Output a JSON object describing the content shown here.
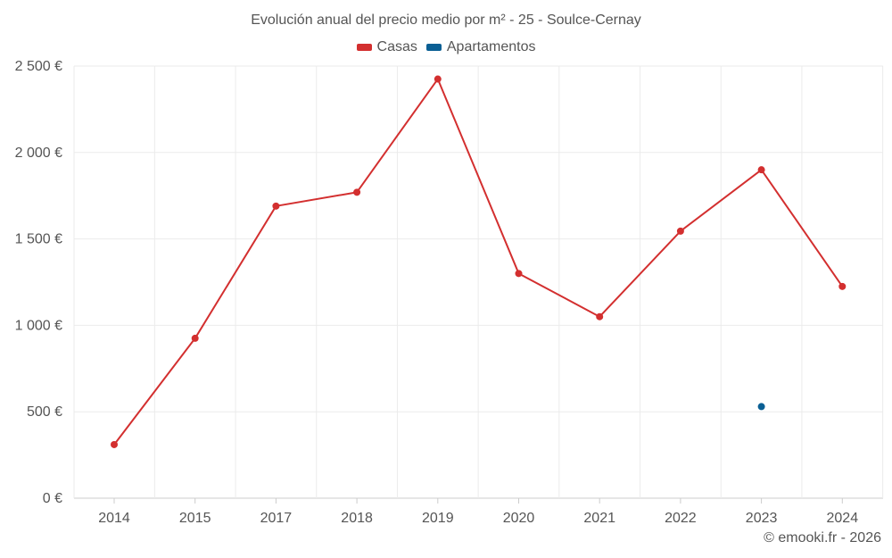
{
  "chart_data": {
    "type": "line",
    "title": "Evolución anual del precio medio por m² - 25 - Soulce-Cernay",
    "categories": [
      "2014",
      "2015",
      "2017",
      "2018",
      "2019",
      "2020",
      "2021",
      "2022",
      "2023",
      "2024"
    ],
    "series": [
      {
        "name": "Casas",
        "color": "#d32f2f",
        "values": [
          310,
          925,
          1690,
          1770,
          2425,
          1300,
          1050,
          1545,
          1900,
          1225
        ]
      },
      {
        "name": "Apartamentos",
        "color": "#0a5f94",
        "values": [
          null,
          null,
          null,
          null,
          null,
          null,
          null,
          null,
          530,
          null
        ]
      }
    ],
    "y_ticks": [
      {
        "value": 0,
        "label": "0 €"
      },
      {
        "value": 500,
        "label": "500 €"
      },
      {
        "value": 1000,
        "label": "1 000 €"
      },
      {
        "value": 1500,
        "label": "1 500 €"
      },
      {
        "value": 2000,
        "label": "2 000 €"
      },
      {
        "value": 2500,
        "label": "2 500 €"
      }
    ],
    "ylim": [
      0,
      2500
    ],
    "xlabel": "",
    "ylabel": "",
    "grid": true,
    "legend_position": "top-center"
  },
  "copyright": "© emooki.fr - 2026"
}
